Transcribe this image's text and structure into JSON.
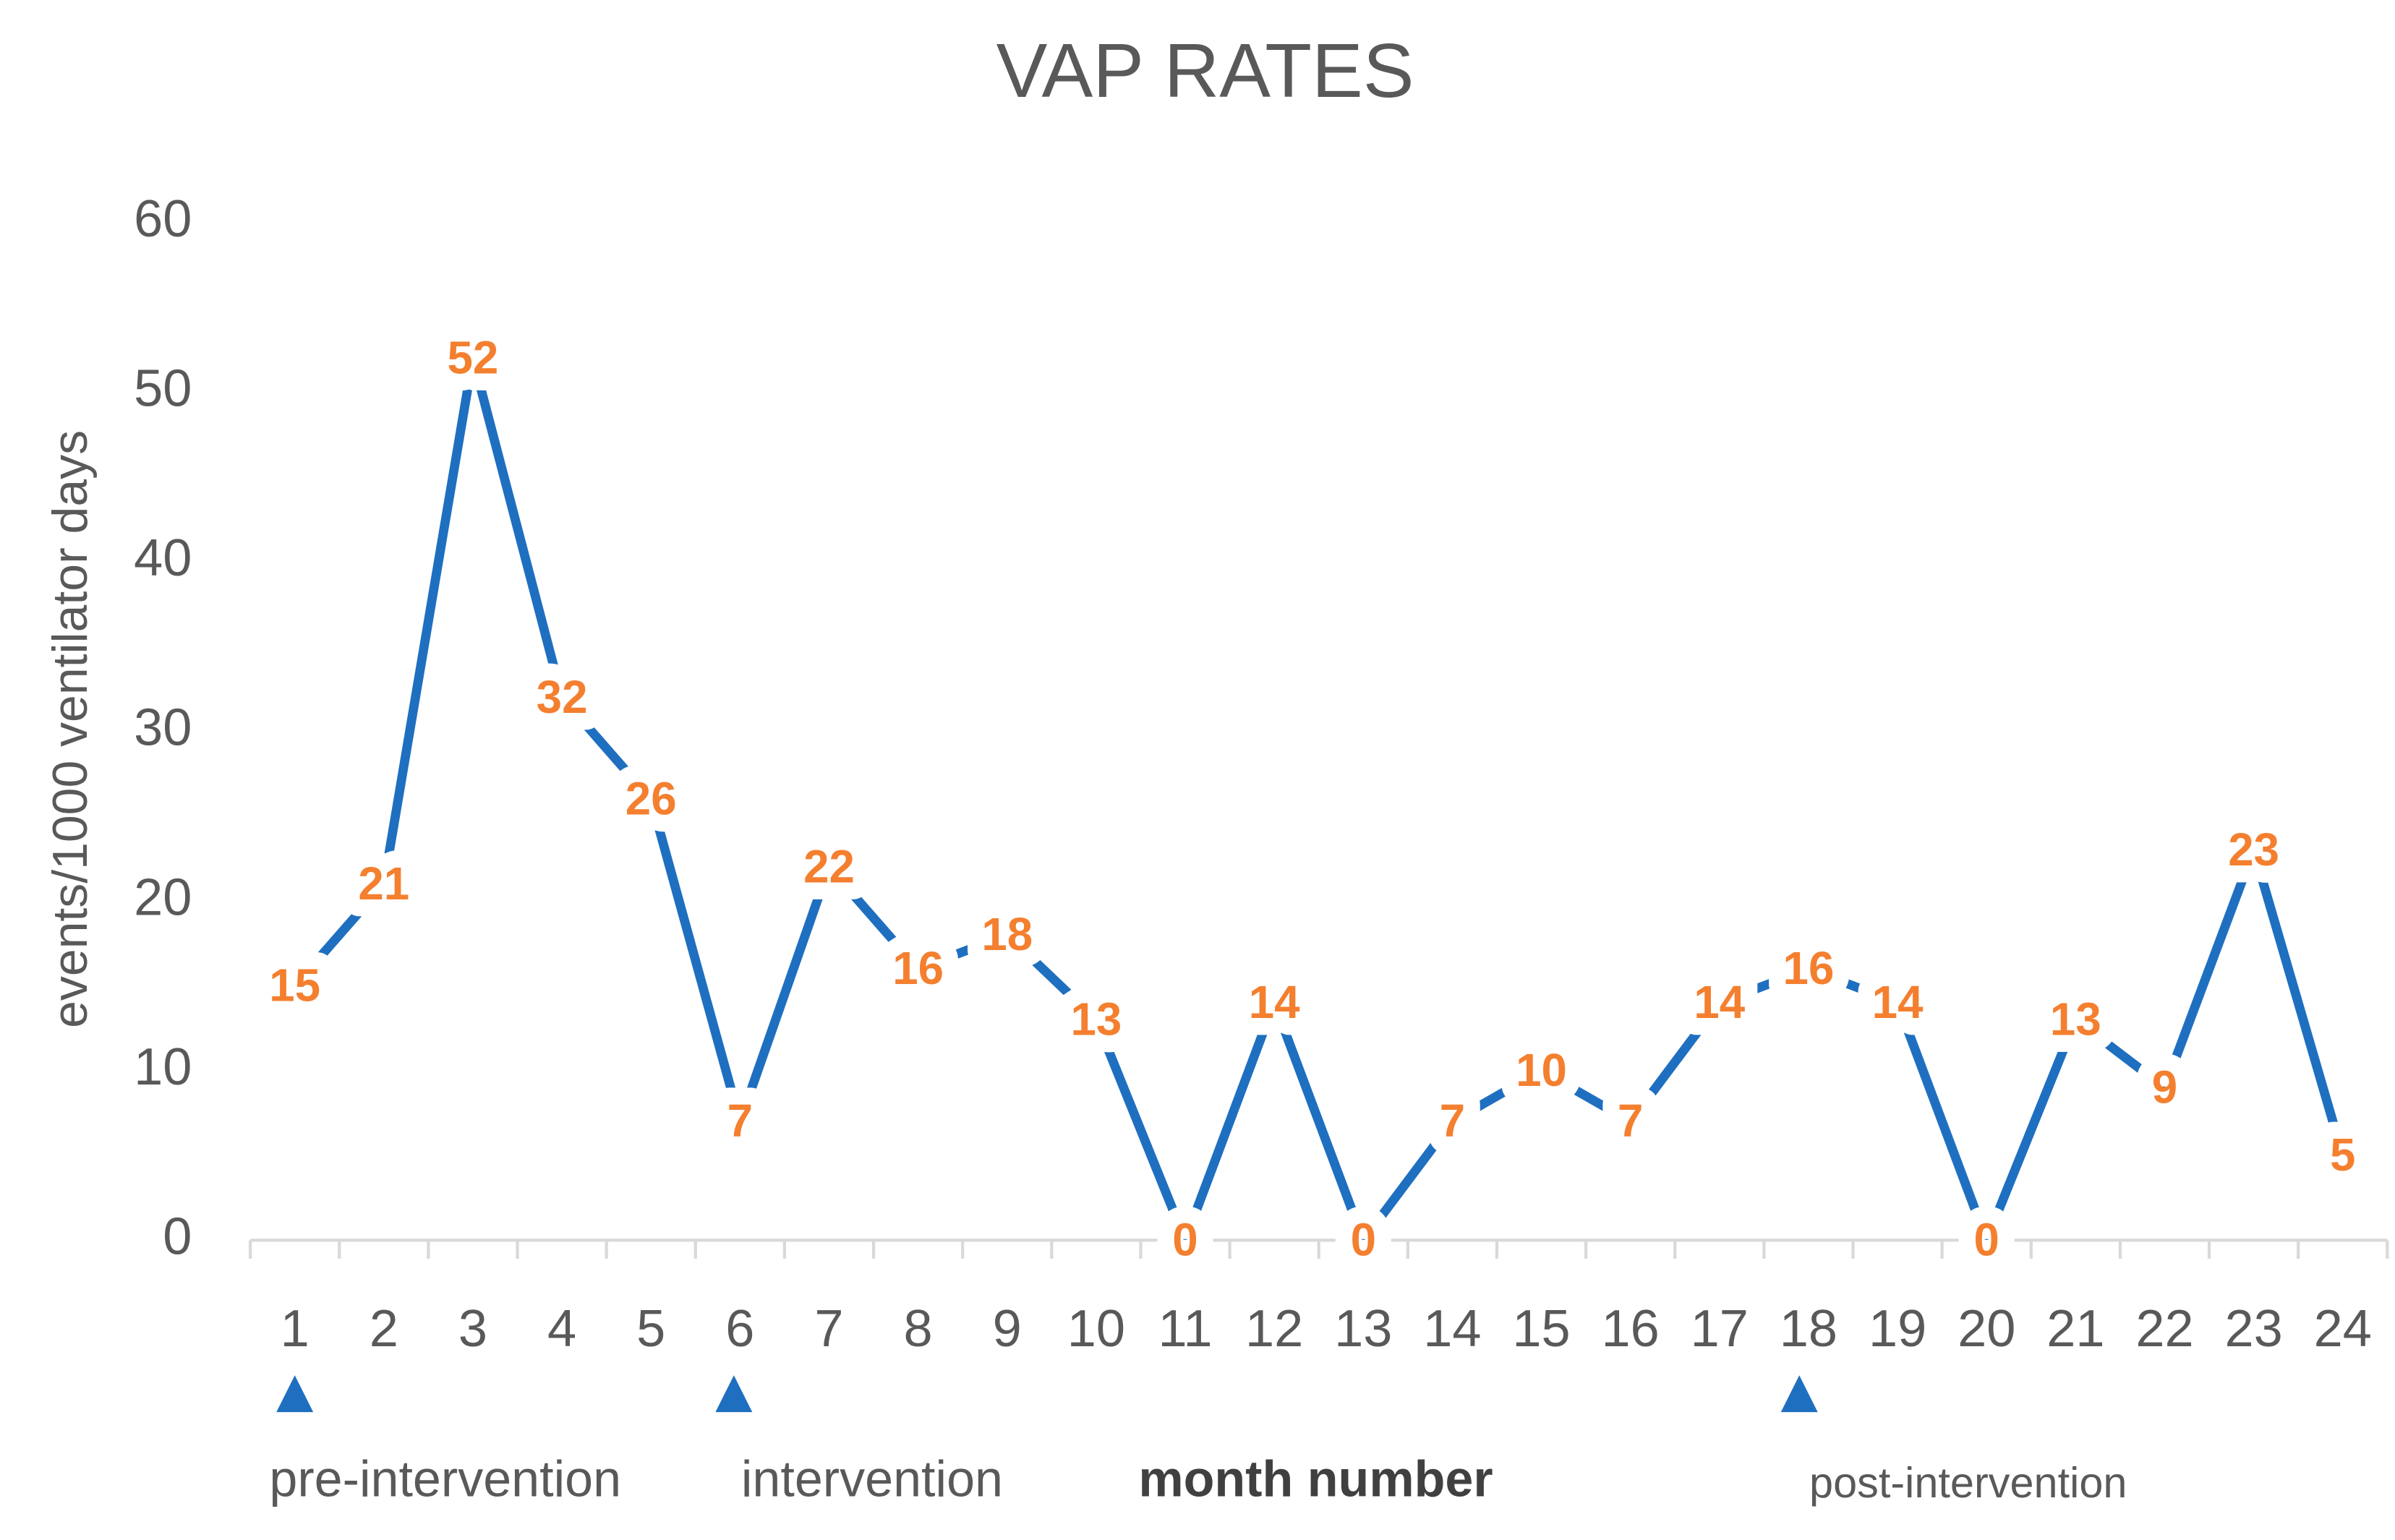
{
  "chart_data": {
    "type": "line",
    "title": "VAP RATES",
    "y_label": "events/1000 ventilator days",
    "x_label": "month number",
    "annotations": [
      "pre-intervention",
      "intervention",
      "post-intervention"
    ],
    "categories": [
      "1",
      "2",
      "3",
      "4",
      "5",
      "6",
      "7",
      "8",
      "9",
      "10",
      "11",
      "12",
      "13",
      "14",
      "15",
      "16",
      "17",
      "18",
      "19",
      "20",
      "21",
      "22",
      "23",
      "24"
    ],
    "series": [
      {
        "name": "VAP rate",
        "color": "#1f6fc0",
        "values": [
          15,
          21,
          52,
          32,
          26,
          7,
          22,
          16,
          18,
          13,
          0,
          14,
          0,
          7,
          10,
          7,
          14,
          16,
          14,
          0,
          13,
          9,
          23,
          5
        ]
      }
    ],
    "label_color": "#f47f2f",
    "ylim": [
      0,
      60
    ],
    "yticks": [
      0,
      10,
      20,
      30,
      40,
      50,
      60
    ],
    "grid": false
  }
}
